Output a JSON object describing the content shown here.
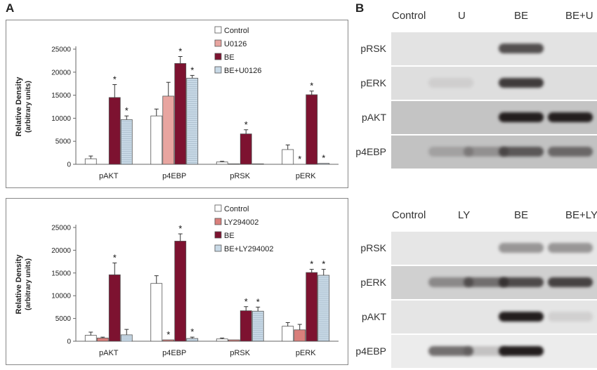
{
  "figure": {
    "panel_a_letter": "A",
    "panel_b_letter": "B"
  },
  "chart_data": [
    {
      "type": "bar",
      "ylabel": "Relative Density",
      "ylabel_sub": "(arbitrary units)",
      "categories": [
        "pAKT",
        "p4EBP",
        "pRSK",
        "pERK"
      ],
      "ylim": [
        0,
        25000
      ],
      "yticks": [
        0,
        5000,
        10000,
        15000,
        20000,
        25000
      ],
      "legend_position": "top-right",
      "series": [
        {
          "name": "Control",
          "color": "#ffffff",
          "values": [
            1200,
            10500,
            500,
            3200
          ],
          "errors": [
            600,
            1500,
            150,
            1000
          ],
          "sig": [
            "",
            "",
            "",
            ""
          ]
        },
        {
          "name": "U0126",
          "color": "#e8a5a0",
          "values": [
            0,
            14800,
            100,
            0
          ],
          "errors": [
            0,
            3000,
            0,
            0
          ],
          "sig": [
            "",
            "",
            "",
            "*"
          ]
        },
        {
          "name": "BE",
          "color": "#7d1230",
          "values": [
            14500,
            21900,
            6600,
            15100
          ],
          "errors": [
            2800,
            1500,
            900,
            800
          ],
          "sig": [
            "*",
            "*",
            "*",
            "*"
          ]
        },
        {
          "name": "BE+U0126",
          "color": "#c8d9e6",
          "values": [
            9700,
            18700,
            100,
            200
          ],
          "errors": [
            800,
            600,
            0,
            0
          ],
          "sig": [
            "*",
            "*",
            "",
            "*"
          ]
        }
      ]
    },
    {
      "type": "bar",
      "ylabel": "Relative Density",
      "ylabel_sub": "(arbitrary units)",
      "categories": [
        "pAKT",
        "p4EBP",
        "pRSK",
        "pERK"
      ],
      "ylim": [
        0,
        25000
      ],
      "yticks": [
        0,
        5000,
        10000,
        15000,
        20000,
        25000
      ],
      "legend_position": "top-right",
      "series": [
        {
          "name": "Control",
          "color": "#ffffff",
          "values": [
            1300,
            12700,
            500,
            3300
          ],
          "errors": [
            700,
            1700,
            200,
            800
          ],
          "sig": [
            "",
            "",
            "",
            ""
          ]
        },
        {
          "name": "LY294002",
          "color": "#d97f7b",
          "values": [
            700,
            300,
            300,
            2500
          ],
          "errors": [
            200,
            0,
            0,
            1200
          ],
          "sig": [
            "",
            "*",
            "",
            ""
          ]
        },
        {
          "name": "BE",
          "color": "#7d1230",
          "values": [
            14600,
            22000,
            6700,
            15100
          ],
          "errors": [
            2600,
            1600,
            900,
            700
          ],
          "sig": [
            "*",
            "*",
            "*",
            "*"
          ]
        },
        {
          "name": "BE+LY294002",
          "color": "#c8d9e6",
          "values": [
            1400,
            600,
            6600,
            14500
          ],
          "errors": [
            1200,
            300,
            900,
            1300
          ],
          "sig": [
            "",
            "*",
            "*",
            "*"
          ]
        }
      ]
    }
  ],
  "blots": [
    {
      "lanes": [
        "Control",
        "U",
        "BE",
        "BE+U"
      ],
      "rows": [
        {
          "label": "pRSK",
          "bg": "#e3e3e3",
          "bands": [
            0.0,
            0.0,
            0.75,
            0.0
          ]
        },
        {
          "label": "pERK",
          "bg": "#dedede",
          "bands": [
            0.08,
            0.0,
            0.85,
            0.0
          ]
        },
        {
          "label": "pAKT",
          "bg": "#c4c4c4",
          "bands": [
            0.0,
            0.0,
            1.0,
            1.0
          ]
        },
        {
          "label": "p4EBP",
          "bg": "#c2c2c2",
          "bands": [
            0.2,
            0.3,
            0.65,
            0.55
          ]
        }
      ]
    },
    {
      "lanes": [
        "Control",
        "LY",
        "BE",
        "BE+LY"
      ],
      "rows": [
        {
          "label": "pRSK",
          "bg": "#e6e6e6",
          "bands": [
            0.0,
            0.0,
            0.4,
            0.4
          ]
        },
        {
          "label": "pERK",
          "bg": "#d0d0d0",
          "bands": [
            0.4,
            0.55,
            0.75,
            0.8
          ]
        },
        {
          "label": "pAKT",
          "bg": "#e5e5e5",
          "bands": [
            0.0,
            0.0,
            1.0,
            0.1
          ]
        },
        {
          "label": "p4EBP",
          "bg": "#ececec",
          "bands": [
            0.6,
            0.2,
            1.0,
            0.0
          ]
        }
      ]
    }
  ]
}
